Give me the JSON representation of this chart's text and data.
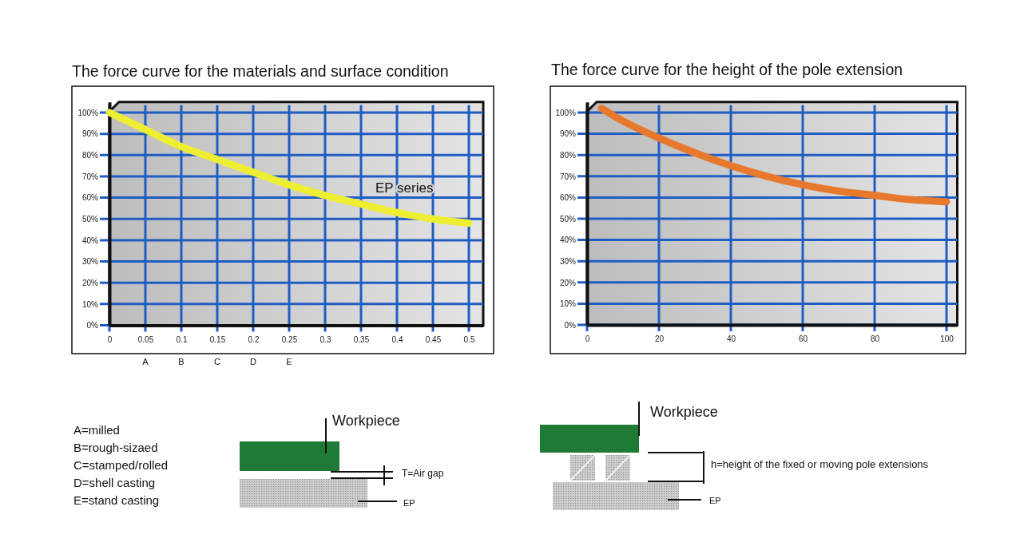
{
  "chart_data": [
    {
      "type": "line",
      "title": "The force curve for the materials and surface condition",
      "x": [
        0,
        0.05,
        0.1,
        0.15,
        0.2,
        0.25,
        0.3,
        0.35,
        0.4,
        0.45,
        0.5
      ],
      "series": [
        {
          "name": "EP series",
          "color": "#eeee33",
          "values": [
            100,
            92,
            84,
            78,
            72,
            66,
            61,
            57,
            53,
            50,
            48
          ]
        }
      ],
      "xlim": [
        0,
        0.52
      ],
      "xticks": [
        0,
        0.05,
        0.1,
        0.15,
        0.2,
        0.25,
        0.3,
        0.35,
        0.4,
        0.45,
        0.5
      ],
      "ylim": [
        0,
        105
      ],
      "yticks": [
        {
          "value": 0,
          "label": "0%"
        },
        {
          "value": 10,
          "label": "10%"
        },
        {
          "value": 20,
          "label": "20%"
        },
        {
          "value": 30,
          "label": "30%"
        },
        {
          "value": 40,
          "label": "40%"
        },
        {
          "value": 50,
          "label": "50%"
        },
        {
          "value": 60,
          "label": "60%"
        },
        {
          "value": 70,
          "label": "70%"
        },
        {
          "value": 80,
          "label": "80%"
        },
        {
          "value": 90,
          "label": "90%"
        },
        {
          "value": 100,
          "label": "100%"
        }
      ],
      "grid": true,
      "annotations": [
        "A",
        "B",
        "C",
        "D",
        "E",
        "A=milled",
        "B=rough-sizaed",
        "C=stamped/rolled",
        "D=shell casting",
        "E=stand casting",
        "Workpiece",
        "T=Air gap",
        "EP"
      ]
    },
    {
      "type": "line",
      "title": "The force curve for the height of the pole extension",
      "x": [
        4,
        10,
        20,
        30,
        40,
        50,
        60,
        70,
        80,
        90,
        100
      ],
      "series": [
        {
          "color": "#e8782c",
          "values": [
            102,
            96,
            88,
            81,
            75,
            70,
            66,
            63,
            61,
            59,
            58
          ]
        }
      ],
      "xlim": [
        0,
        103
      ],
      "xticks": [
        0,
        20,
        40,
        60,
        80,
        100
      ],
      "ylim": [
        0,
        105
      ],
      "yticks": [
        {
          "value": 0,
          "label": "0%"
        },
        {
          "value": 10,
          "label": "10%"
        },
        {
          "value": 20,
          "label": "20%"
        },
        {
          "value": 30,
          "label": "30%"
        },
        {
          "value": 40,
          "label": "40%"
        },
        {
          "value": 50,
          "label": "50%"
        },
        {
          "value": 60,
          "label": "60%"
        },
        {
          "value": 70,
          "label": "70%"
        },
        {
          "value": 80,
          "label": "80%"
        },
        {
          "value": 90,
          "label": "90%"
        },
        {
          "value": 100,
          "label": "100%"
        }
      ],
      "grid": true,
      "annotations": [
        "Workpiece",
        "h=height of the fixed or moving pole extensions",
        "EP"
      ]
    }
  ]
}
